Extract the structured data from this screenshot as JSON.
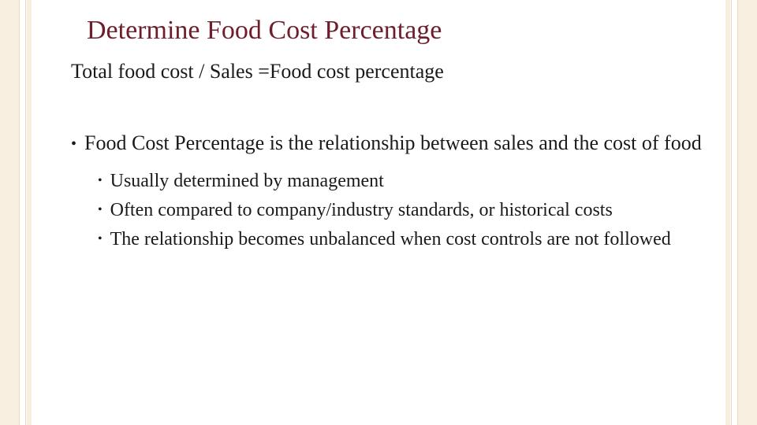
{
  "colors": {
    "title": "#6e1e2a",
    "body": "#1a1a1a",
    "border_bg": "#f9efe0",
    "border_edge": "#e8d9bf",
    "page_bg": "#ffffff"
  },
  "typography": {
    "title_fontsize": 34,
    "formula_fontsize": 26,
    "main_bullet_fontsize": 26,
    "sub_bullet_fontsize": 24,
    "font_family": "Georgia"
  },
  "slide": {
    "title": "Determine Food Cost Percentage",
    "formula": "Total food cost / Sales =Food cost percentage",
    "main_bullet": "Food Cost Percentage is the relationship between sales and the cost of food",
    "sub_bullets": [
      "Usually determined by management",
      "Often compared to company/industry standards,  or historical costs",
      "The relationship becomes unbalanced when cost controls are not followed"
    ]
  }
}
